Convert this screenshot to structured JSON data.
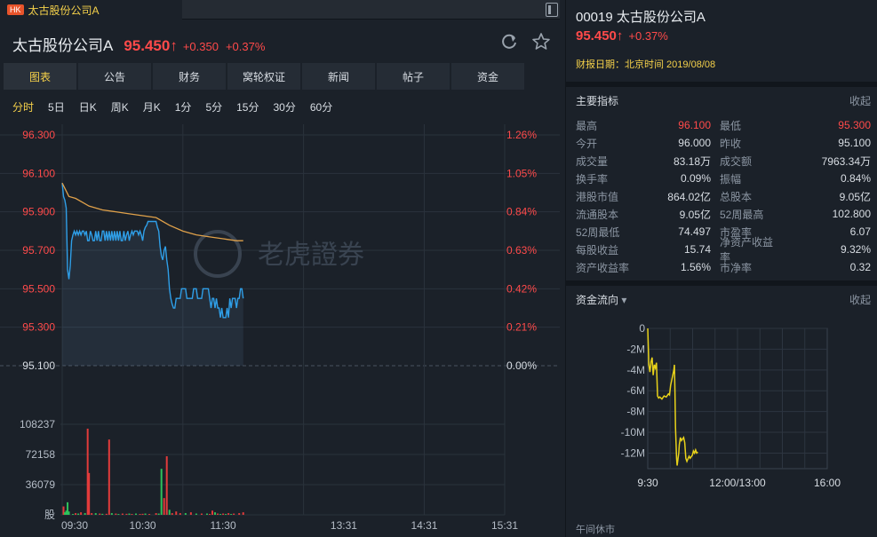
{
  "tab": {
    "badge": "HK",
    "title": "太古股份公司A"
  },
  "header": {
    "name": "太古股份公司A",
    "price": "95.450",
    "arrow": "↑",
    "change": "+0.350",
    "change_pct": "+0.37%"
  },
  "nav": [
    "图表",
    "公告",
    "财务",
    "窝轮权证",
    "新闻",
    "帖子",
    "资金"
  ],
  "periods": [
    "分时",
    "5日",
    "日K",
    "周K",
    "月K",
    "1分",
    "5分",
    "15分",
    "30分",
    "60分"
  ],
  "watermark": "老虎證券",
  "right": {
    "code": "00019",
    "name": "太古股份公司A",
    "price": "95.450",
    "arrow": "↑",
    "change_pct": "+0.37%",
    "report_label": "财报日期：北京时间 2019/08/08",
    "metrics_title": "主要指标",
    "collapse": "收起",
    "metrics": [
      [
        "最高",
        "96.100",
        "最低",
        "95.300"
      ],
      [
        "今开",
        "96.000",
        "昨收",
        "95.100"
      ],
      [
        "成交量",
        "83.18万",
        "成交额",
        "7963.34万"
      ],
      [
        "换手率",
        "0.09%",
        "振幅",
        "0.84%"
      ],
      [
        "港股市值",
        "864.02亿",
        "总股本",
        "9.05亿"
      ],
      [
        "流通股本",
        "9.05亿",
        "52周最高",
        "102.800"
      ],
      [
        "52周最低",
        "74.497",
        "市盈率",
        "6.07"
      ],
      [
        "每股收益",
        "15.74",
        "净资产收益率",
        "9.32%"
      ],
      [
        "资产收益率",
        "1.56%",
        "市净率",
        "0.32"
      ]
    ],
    "flow_title": "资金流向",
    "flow_arrow": "▾",
    "lunch": "午间休市",
    "colors": {
      "high": "#ff4a4a",
      "low": "#ff4a4a"
    }
  },
  "chart_data": [
    {
      "type": "line",
      "name": "intraday",
      "price_ticks": [
        "96.300",
        "96.100",
        "95.900",
        "95.700",
        "95.500",
        "95.300",
        "95.100"
      ],
      "price_tick_values": [
        96.3,
        96.1,
        95.9,
        95.7,
        95.5,
        95.3,
        95.1
      ],
      "pct_ticks": [
        "1.26%",
        "1.05%",
        "0.84%",
        "0.63%",
        "0.42%",
        "0.21%",
        "0.00%"
      ],
      "ylim": [
        95.1,
        96.3
      ],
      "volume_ticks": [
        "108237",
        "72158",
        "36079",
        "股"
      ],
      "volume_tick_values": [
        108237,
        72158,
        36079,
        0
      ],
      "volume_max": 108237,
      "time_ticks": [
        "09:30",
        "10:30",
        "11:30",
        "13:31",
        "14:31",
        "15:31"
      ],
      "session_minutes": 330,
      "price_series": [
        [
          0,
          96.05
        ],
        [
          1,
          95.98
        ],
        [
          2,
          95.96
        ],
        [
          3,
          95.92
        ],
        [
          4,
          95.6
        ],
        [
          5,
          95.55
        ],
        [
          6,
          95.62
        ],
        [
          7,
          95.75
        ],
        [
          8,
          95.78
        ],
        [
          9,
          95.8
        ],
        [
          10,
          95.78
        ],
        [
          11,
          95.8
        ],
        [
          12,
          95.78
        ],
        [
          13,
          95.8
        ],
        [
          14,
          95.78
        ],
        [
          15,
          95.8
        ],
        [
          16,
          95.8
        ],
        [
          17,
          95.78
        ],
        [
          18,
          95.8
        ],
        [
          19,
          95.75
        ],
        [
          20,
          95.75
        ],
        [
          21,
          95.8
        ],
        [
          22,
          95.78
        ],
        [
          23,
          95.75
        ],
        [
          24,
          95.75
        ],
        [
          25,
          95.8
        ],
        [
          26,
          95.75
        ],
        [
          27,
          95.8
        ],
        [
          28,
          95.75
        ],
        [
          29,
          95.75
        ],
        [
          30,
          95.8
        ],
        [
          31,
          95.8
        ],
        [
          32,
          95.75
        ],
        [
          33,
          95.8
        ],
        [
          34,
          95.75
        ],
        [
          35,
          95.8
        ],
        [
          36,
          95.75
        ],
        [
          37,
          95.8
        ],
        [
          38,
          95.75
        ],
        [
          39,
          95.8
        ],
        [
          40,
          95.75
        ],
        [
          41,
          95.8
        ],
        [
          42,
          95.75
        ],
        [
          43,
          95.8
        ],
        [
          44,
          95.75
        ],
        [
          45,
          95.75
        ],
        [
          46,
          95.8
        ],
        [
          47,
          95.75
        ],
        [
          48,
          95.78
        ],
        [
          49,
          95.8
        ],
        [
          50,
          95.75
        ],
        [
          51,
          95.78
        ],
        [
          52,
          95.8
        ],
        [
          53,
          95.78
        ],
        [
          54,
          95.8
        ],
        [
          55,
          95.8
        ],
        [
          56,
          95.8
        ],
        [
          57,
          95.78
        ],
        [
          58,
          95.8
        ],
        [
          59,
          95.78
        ],
        [
          60,
          95.75
        ],
        [
          61,
          95.8
        ],
        [
          62,
          95.82
        ],
        [
          63,
          95.83
        ],
        [
          64,
          95.85
        ],
        [
          65,
          95.85
        ],
        [
          66,
          95.85
        ],
        [
          67,
          95.85
        ],
        [
          68,
          95.85
        ],
        [
          69,
          95.85
        ],
        [
          70,
          95.85
        ],
        [
          71,
          95.82
        ],
        [
          72,
          95.8
        ],
        [
          73,
          95.72
        ],
        [
          74,
          95.67
        ],
        [
          75,
          95.65
        ],
        [
          76,
          95.7
        ],
        [
          77,
          95.72
        ],
        [
          78,
          95.65
        ],
        [
          79,
          95.6
        ],
        [
          80,
          95.5
        ],
        [
          81,
          95.45
        ],
        [
          82,
          95.42
        ],
        [
          83,
          95.4
        ],
        [
          84,
          95.4
        ],
        [
          85,
          95.45
        ],
        [
          86,
          95.45
        ],
        [
          87,
          95.45
        ],
        [
          88,
          95.45
        ],
        [
          89,
          95.5
        ],
        [
          90,
          95.5
        ],
        [
          91,
          95.5
        ],
        [
          92,
          95.5
        ],
        [
          93,
          95.45
        ],
        [
          94,
          95.45
        ],
        [
          95,
          95.45
        ],
        [
          96,
          95.45
        ],
        [
          97,
          95.45
        ],
        [
          98,
          95.5
        ],
        [
          99,
          95.5
        ],
        [
          100,
          95.5
        ],
        [
          101,
          95.45
        ],
        [
          102,
          95.45
        ],
        [
          103,
          95.45
        ],
        [
          104,
          95.45
        ],
        [
          105,
          95.5
        ],
        [
          106,
          95.5
        ],
        [
          107,
          95.5
        ],
        [
          108,
          95.5
        ],
        [
          109,
          95.5
        ],
        [
          110,
          95.45
        ],
        [
          111,
          95.4
        ],
        [
          112,
          95.45
        ],
        [
          113,
          95.45
        ],
        [
          114,
          95.4
        ],
        [
          115,
          95.45
        ],
        [
          116,
          95.4
        ],
        [
          117,
          95.4
        ],
        [
          118,
          95.35
        ],
        [
          119,
          95.4
        ],
        [
          120,
          95.35
        ],
        [
          121,
          95.35
        ],
        [
          122,
          95.35
        ],
        [
          123,
          95.4
        ],
        [
          124,
          95.35
        ],
        [
          125,
          95.45
        ],
        [
          126,
          95.4
        ],
        [
          127,
          95.45
        ],
        [
          128,
          95.45
        ],
        [
          129,
          95.45
        ],
        [
          130,
          95.4
        ],
        [
          131,
          95.45
        ],
        [
          132,
          95.45
        ],
        [
          133,
          95.5
        ],
        [
          134,
          95.5
        ],
        [
          135,
          95.45
        ]
      ],
      "avg_series": [
        [
          0,
          96.05
        ],
        [
          5,
          95.98
        ],
        [
          10,
          95.97
        ],
        [
          15,
          95.95
        ],
        [
          20,
          95.93
        ],
        [
          30,
          95.91
        ],
        [
          40,
          95.9
        ],
        [
          50,
          95.89
        ],
        [
          60,
          95.88
        ],
        [
          70,
          95.87
        ],
        [
          80,
          95.83
        ],
        [
          90,
          95.8
        ],
        [
          100,
          95.78
        ],
        [
          110,
          95.77
        ],
        [
          120,
          95.76
        ],
        [
          130,
          95.75
        ],
        [
          135,
          95.75
        ]
      ],
      "volume_series": [
        [
          1,
          10000,
          "r"
        ],
        [
          2,
          3000,
          "g"
        ],
        [
          3,
          5000,
          "g"
        ],
        [
          4,
          15000,
          "g"
        ],
        [
          5,
          4000,
          "g"
        ],
        [
          8,
          1000,
          "g"
        ],
        [
          10,
          2000,
          "r"
        ],
        [
          12,
          1500,
          "g"
        ],
        [
          14,
          3000,
          "r"
        ],
        [
          17,
          2000,
          "g"
        ],
        [
          19,
          103000,
          "r"
        ],
        [
          20,
          50000,
          "r"
        ],
        [
          22,
          2000,
          "r"
        ],
        [
          25,
          2000,
          "g"
        ],
        [
          28,
          1500,
          "r"
        ],
        [
          30,
          1200,
          "g"
        ],
        [
          33,
          1200,
          "r"
        ],
        [
          35,
          90000,
          "r"
        ],
        [
          37,
          2000,
          "g"
        ],
        [
          40,
          1500,
          "r"
        ],
        [
          42,
          1000,
          "g"
        ],
        [
          45,
          1500,
          "r"
        ],
        [
          48,
          1200,
          "r"
        ],
        [
          50,
          1500,
          "g"
        ],
        [
          52,
          1000,
          "r"
        ],
        [
          55,
          1500,
          "g"
        ],
        [
          58,
          1000,
          "r"
        ],
        [
          60,
          1200,
          "r"
        ],
        [
          62,
          1500,
          "g"
        ],
        [
          65,
          1000,
          "r"
        ],
        [
          70,
          2000,
          "r"
        ],
        [
          72,
          1500,
          "g"
        ],
        [
          74,
          55000,
          "g"
        ],
        [
          76,
          20000,
          "r"
        ],
        [
          78,
          70000,
          "r"
        ],
        [
          80,
          6000,
          "g"
        ],
        [
          82,
          2000,
          "r"
        ],
        [
          85,
          4000,
          "r"
        ],
        [
          88,
          2000,
          "r"
        ],
        [
          92,
          2000,
          "g"
        ],
        [
          96,
          3000,
          "r"
        ],
        [
          100,
          1500,
          "g"
        ],
        [
          104,
          1500,
          "r"
        ],
        [
          108,
          1500,
          "g"
        ],
        [
          110,
          1000,
          "r"
        ],
        [
          112,
          5000,
          "r"
        ],
        [
          114,
          3000,
          "g"
        ],
        [
          116,
          1500,
          "r"
        ],
        [
          118,
          1000,
          "g"
        ],
        [
          120,
          1500,
          "r"
        ],
        [
          122,
          1000,
          "g"
        ],
        [
          124,
          2000,
          "r"
        ],
        [
          126,
          1000,
          "g"
        ],
        [
          128,
          1500,
          "r"
        ],
        [
          132,
          2000,
          "r"
        ],
        [
          135,
          3000,
          "r"
        ]
      ]
    },
    {
      "type": "line",
      "name": "capital_flow",
      "y_ticks": [
        "0",
        "-2M",
        "-4M",
        "-6M",
        "-8M",
        "-10M",
        "-12M"
      ],
      "y_tick_values": [
        0,
        -2,
        -4,
        -6,
        -8,
        -10,
        -12
      ],
      "y_unit": "M",
      "ylim": [
        -13.5,
        0
      ],
      "x_ticks": [
        "9:30",
        "12:00/13:00",
        "16:00"
      ],
      "session_minutes": 330,
      "series": [
        [
          0,
          0
        ],
        [
          2,
          -3.5
        ],
        [
          4,
          -4.2
        ],
        [
          6,
          -3.2
        ],
        [
          8,
          -2.8
        ],
        [
          10,
          -4.5
        ],
        [
          12,
          -3.5
        ],
        [
          14,
          -3.8
        ],
        [
          16,
          -3.3
        ],
        [
          18,
          -6.5
        ],
        [
          20,
          -6.7
        ],
        [
          22,
          -6.6
        ],
        [
          26,
          -6.8
        ],
        [
          30,
          -6.5
        ],
        [
          34,
          -6.6
        ],
        [
          38,
          -6.3
        ],
        [
          40,
          -6.4
        ],
        [
          42,
          -5.5
        ],
        [
          44,
          -5.0
        ],
        [
          46,
          -4.5
        ],
        [
          48,
          -4.0
        ],
        [
          49,
          -3.5
        ],
        [
          50,
          -6.0
        ],
        [
          51,
          -9.5
        ],
        [
          52,
          -11.0
        ],
        [
          53,
          -12.5
        ],
        [
          54,
          -13.2
        ],
        [
          55,
          -12.8
        ],
        [
          57,
          -12.0
        ],
        [
          58,
          -11.2
        ],
        [
          60,
          -10.5
        ],
        [
          62,
          -10.8
        ],
        [
          66,
          -10.5
        ],
        [
          68,
          -11.0
        ],
        [
          70,
          -12.5
        ],
        [
          72,
          -12.8
        ],
        [
          76,
          -12.3
        ],
        [
          78,
          -12.5
        ],
        [
          82,
          -12.2
        ],
        [
          84,
          -11.8
        ],
        [
          86,
          -12.0
        ],
        [
          88,
          -11.7
        ],
        [
          90,
          -12.0
        ],
        [
          92,
          -11.9
        ]
      ]
    }
  ]
}
